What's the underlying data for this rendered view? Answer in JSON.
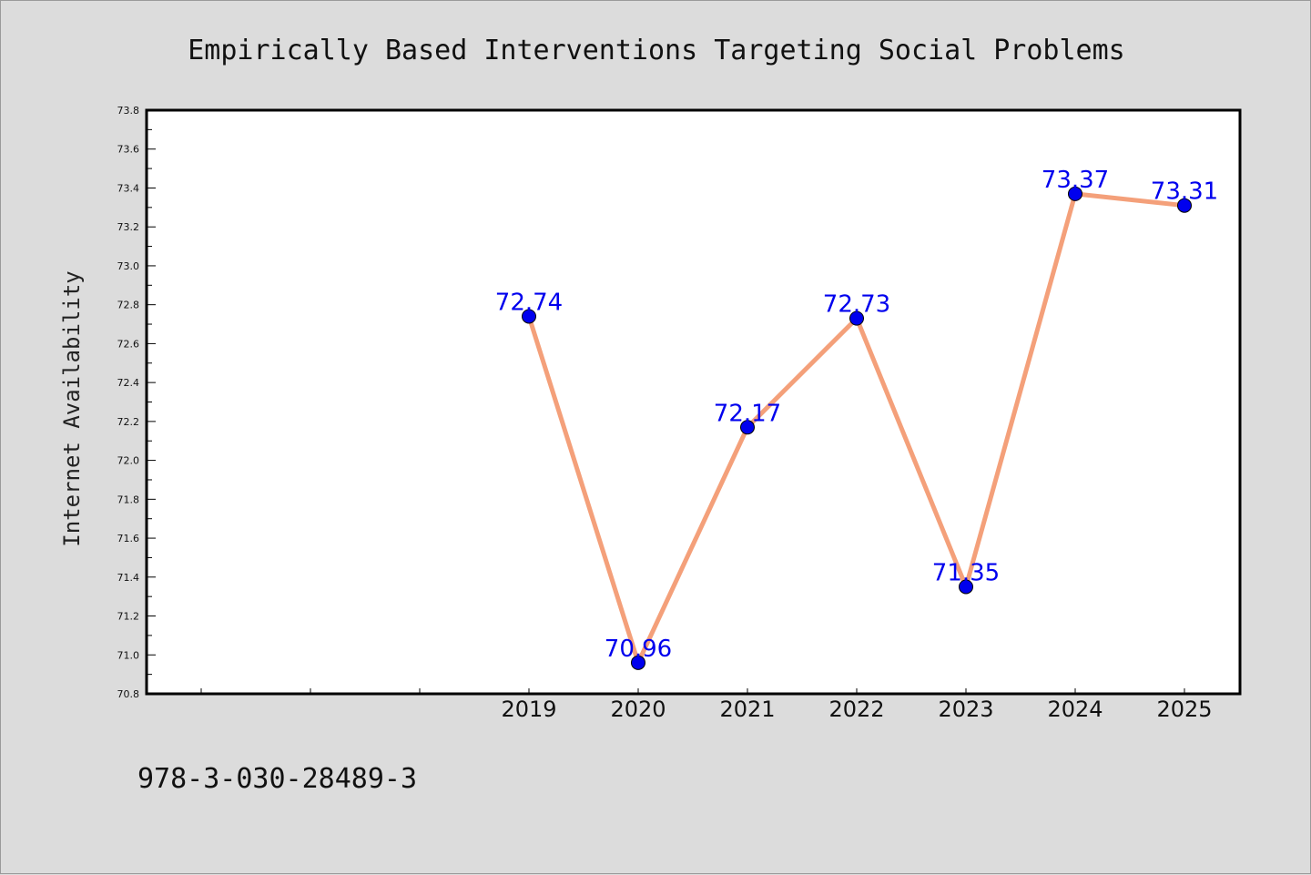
{
  "chart_data": {
    "type": "line",
    "title": "Empirically Based Interventions Targeting Social Problems",
    "ylabel": "Internet Availability",
    "xlabel": "",
    "categories": [
      "2019",
      "2020",
      "2021",
      "2022",
      "2023",
      "2024",
      "2025"
    ],
    "series": [
      {
        "values": [
          72.74,
          70.96,
          72.17,
          72.73,
          71.35,
          73.37,
          73.31
        ]
      }
    ],
    "data_labels": [
      "72.74",
      "70.96",
      "72.17",
      "72.73",
      "71.35",
      "73.37",
      "73.31"
    ],
    "ylim": [
      70.8,
      73.8
    ],
    "yticks": [
      "70.8",
      "71.0",
      "71.2",
      "71.4",
      "71.6",
      "71.8",
      "72.0",
      "72.2",
      "72.4",
      "72.6",
      "72.8",
      "73.0",
      "73.2",
      "73.4",
      "73.6",
      "73.8"
    ],
    "grid": false,
    "legend": "none",
    "colors": {
      "line": "#f4a07a",
      "marker": "#0000ee",
      "label": "#0000ee"
    }
  },
  "footnote": "978-3-030-28489-3"
}
